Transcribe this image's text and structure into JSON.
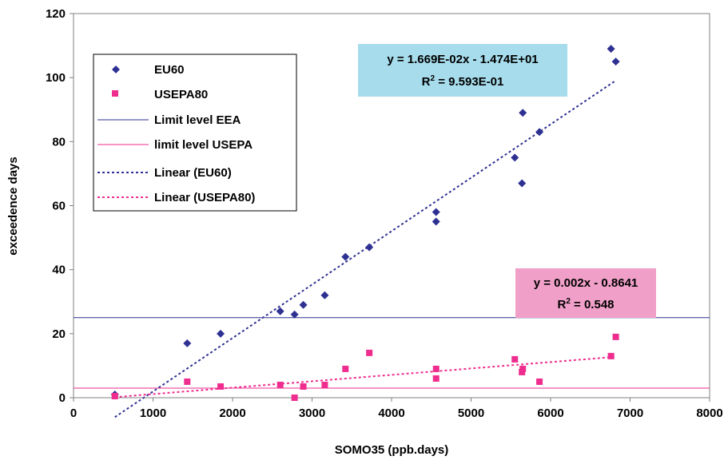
{
  "chart_data": {
    "type": "scatter",
    "xlabel": "SOMO35 (ppb.days)",
    "ylabel": "exceedence days",
    "xlim": [
      0,
      8000
    ],
    "ylim": [
      0,
      120
    ],
    "x_ticks": [
      0,
      1000,
      2000,
      3000,
      4000,
      5000,
      6000,
      7000,
      8000
    ],
    "y_ticks": [
      0,
      20,
      40,
      60,
      80,
      100,
      120
    ],
    "grid": false,
    "legend_position": "top-left",
    "series": [
      {
        "name": "EU60",
        "marker": "diamond",
        "color": "#2e3192",
        "points": [
          [
            520,
            1
          ],
          [
            1430,
            17
          ],
          [
            1850,
            20
          ],
          [
            2600,
            27
          ],
          [
            2780,
            26
          ],
          [
            2890,
            29
          ],
          [
            3160,
            32
          ],
          [
            3420,
            44
          ],
          [
            3720,
            47
          ],
          [
            4560,
            55
          ],
          [
            4560,
            58
          ],
          [
            5550,
            75
          ],
          [
            5640,
            67
          ],
          [
            5650,
            89
          ],
          [
            5860,
            83
          ],
          [
            6760,
            109
          ],
          [
            6820,
            105
          ]
        ]
      },
      {
        "name": "USEPA80",
        "marker": "square",
        "color": "#ee2d8f",
        "points": [
          [
            520,
            0.5
          ],
          [
            1430,
            5
          ],
          [
            1850,
            3.5
          ],
          [
            2600,
            4
          ],
          [
            2780,
            0
          ],
          [
            2890,
            3.5
          ],
          [
            3160,
            4
          ],
          [
            3420,
            9
          ],
          [
            3720,
            14
          ],
          [
            4560,
            6
          ],
          [
            4560,
            9
          ],
          [
            5550,
            12
          ],
          [
            5640,
            8
          ],
          [
            5650,
            9
          ],
          [
            5860,
            5
          ],
          [
            6760,
            13
          ],
          [
            6820,
            19
          ]
        ]
      }
    ],
    "reference_lines": [
      {
        "name": "Limit level EEA",
        "y": 25,
        "color": "#2e3192"
      },
      {
        "name": "limit level USEPA",
        "y": 3,
        "color": "#ee2d8f"
      }
    ],
    "trendlines": [
      {
        "name": "Linear (EU60)",
        "color": "#2e3192",
        "x_range": [
          520,
          6820
        ],
        "slope": 0.01669,
        "intercept": -14.74,
        "equation": "y = 1.669E-02x - 1.474E+01",
        "r2_prefix": "R",
        "r2_value": " = 9.593E-01"
      },
      {
        "name": "Linear (USEPA80)",
        "color": "#ee2d8f",
        "x_range": [
          520,
          6820
        ],
        "slope": 0.002,
        "intercept": -0.8641,
        "equation": "y = 0.002x - 0.8641",
        "r2_prefix": "R",
        "r2_value": " = 0.548"
      }
    ],
    "annotation_colors": {
      "eu60_box": "#a6dcec",
      "usepa_box": "#f0a0c8"
    }
  }
}
